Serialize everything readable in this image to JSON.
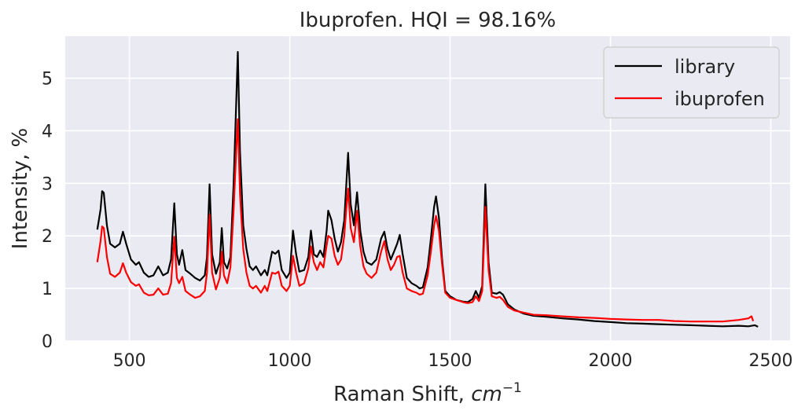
{
  "chart_data": {
    "type": "line",
    "title": "Ibuprofen. HQI = 98.16%",
    "xlabel": "Raman Shift,",
    "xlabel_math": "cm",
    "xlabel_sup": "−1",
    "ylabel": "Intensity, %",
    "xlim": [
      300,
      2560
    ],
    "ylim": [
      0,
      5.8
    ],
    "xticks": [
      500,
      1000,
      1500,
      2000,
      2500
    ],
    "yticks": [
      0,
      1,
      2,
      3,
      4,
      5
    ],
    "grid": true,
    "legend": "top-right",
    "series": [
      {
        "name": "library",
        "color": "#000000",
        "points": [
          [
            400,
            2.12
          ],
          [
            410,
            2.5
          ],
          [
            415,
            2.85
          ],
          [
            420,
            2.82
          ],
          [
            430,
            2.2
          ],
          [
            440,
            1.85
          ],
          [
            455,
            1.78
          ],
          [
            470,
            1.85
          ],
          [
            480,
            2.08
          ],
          [
            490,
            1.85
          ],
          [
            505,
            1.55
          ],
          [
            520,
            1.45
          ],
          [
            530,
            1.5
          ],
          [
            545,
            1.3
          ],
          [
            560,
            1.22
          ],
          [
            575,
            1.25
          ],
          [
            590,
            1.42
          ],
          [
            605,
            1.25
          ],
          [
            620,
            1.3
          ],
          [
            630,
            1.55
          ],
          [
            640,
            2.62
          ],
          [
            648,
            1.65
          ],
          [
            655,
            1.45
          ],
          [
            665,
            1.73
          ],
          [
            675,
            1.35
          ],
          [
            690,
            1.28
          ],
          [
            705,
            1.2
          ],
          [
            720,
            1.15
          ],
          [
            735,
            1.25
          ],
          [
            742,
            1.6
          ],
          [
            750,
            2.98
          ],
          [
            758,
            1.65
          ],
          [
            770,
            1.28
          ],
          [
            782,
            1.5
          ],
          [
            788,
            2.15
          ],
          [
            795,
            1.5
          ],
          [
            805,
            1.38
          ],
          [
            815,
            1.6
          ],
          [
            825,
            3.0
          ],
          [
            833,
            4.5
          ],
          [
            838,
            5.5
          ],
          [
            845,
            3.6
          ],
          [
            855,
            2.2
          ],
          [
            865,
            1.75
          ],
          [
            875,
            1.42
          ],
          [
            885,
            1.35
          ],
          [
            895,
            1.42
          ],
          [
            910,
            1.25
          ],
          [
            922,
            1.35
          ],
          [
            930,
            1.25
          ],
          [
            945,
            1.7
          ],
          [
            955,
            1.66
          ],
          [
            965,
            1.72
          ],
          [
            975,
            1.35
          ],
          [
            990,
            1.2
          ],
          [
            1000,
            1.3
          ],
          [
            1010,
            2.1
          ],
          [
            1020,
            1.65
          ],
          [
            1030,
            1.32
          ],
          [
            1045,
            1.35
          ],
          [
            1058,
            1.6
          ],
          [
            1066,
            2.1
          ],
          [
            1075,
            1.65
          ],
          [
            1085,
            1.6
          ],
          [
            1095,
            1.72
          ],
          [
            1105,
            1.6
          ],
          [
            1115,
            2.1
          ],
          [
            1120,
            2.48
          ],
          [
            1130,
            2.3
          ],
          [
            1140,
            1.95
          ],
          [
            1150,
            1.7
          ],
          [
            1160,
            1.88
          ],
          [
            1170,
            2.3
          ],
          [
            1176,
            2.95
          ],
          [
            1182,
            3.58
          ],
          [
            1190,
            2.6
          ],
          [
            1200,
            2.2
          ],
          [
            1210,
            2.83
          ],
          [
            1220,
            2.1
          ],
          [
            1230,
            1.7
          ],
          [
            1240,
            1.5
          ],
          [
            1255,
            1.45
          ],
          [
            1270,
            1.55
          ],
          [
            1285,
            1.95
          ],
          [
            1295,
            2.08
          ],
          [
            1305,
            1.75
          ],
          [
            1315,
            1.55
          ],
          [
            1325,
            1.7
          ],
          [
            1335,
            1.85
          ],
          [
            1343,
            2.02
          ],
          [
            1352,
            1.65
          ],
          [
            1365,
            1.2
          ],
          [
            1380,
            1.1
          ],
          [
            1395,
            1.05
          ],
          [
            1405,
            1.0
          ],
          [
            1415,
            1.02
          ],
          [
            1430,
            1.4
          ],
          [
            1440,
            1.95
          ],
          [
            1450,
            2.55
          ],
          [
            1456,
            2.75
          ],
          [
            1465,
            2.35
          ],
          [
            1475,
            1.55
          ],
          [
            1485,
            0.95
          ],
          [
            1500,
            0.85
          ],
          [
            1520,
            0.78
          ],
          [
            1540,
            0.75
          ],
          [
            1555,
            0.74
          ],
          [
            1570,
            0.8
          ],
          [
            1580,
            0.95
          ],
          [
            1590,
            0.82
          ],
          [
            1600,
            1.05
          ],
          [
            1610,
            2.98
          ],
          [
            1620,
            1.5
          ],
          [
            1630,
            0.92
          ],
          [
            1645,
            0.9
          ],
          [
            1655,
            0.93
          ],
          [
            1665,
            0.88
          ],
          [
            1680,
            0.7
          ],
          [
            1700,
            0.6
          ],
          [
            1730,
            0.52
          ],
          [
            1760,
            0.48
          ],
          [
            1800,
            0.46
          ],
          [
            1850,
            0.43
          ],
          [
            1900,
            0.41
          ],
          [
            1950,
            0.38
          ],
          [
            2000,
            0.36
          ],
          [
            2050,
            0.34
          ],
          [
            2100,
            0.33
          ],
          [
            2150,
            0.32
          ],
          [
            2200,
            0.31
          ],
          [
            2250,
            0.3
          ],
          [
            2300,
            0.29
          ],
          [
            2350,
            0.28
          ],
          [
            2400,
            0.29
          ],
          [
            2430,
            0.28
          ],
          [
            2450,
            0.3
          ],
          [
            2460,
            0.27
          ]
        ]
      },
      {
        "name": "ibuprofen",
        "color": "#ff0000",
        "points": [
          [
            400,
            1.5
          ],
          [
            410,
            1.9
          ],
          [
            415,
            2.18
          ],
          [
            420,
            2.15
          ],
          [
            430,
            1.6
          ],
          [
            440,
            1.28
          ],
          [
            455,
            1.22
          ],
          [
            470,
            1.3
          ],
          [
            480,
            1.48
          ],
          [
            490,
            1.3
          ],
          [
            505,
            1.12
          ],
          [
            520,
            1.05
          ],
          [
            530,
            1.08
          ],
          [
            545,
            0.92
          ],
          [
            560,
            0.87
          ],
          [
            575,
            0.88
          ],
          [
            590,
            1.0
          ],
          [
            605,
            0.88
          ],
          [
            620,
            0.9
          ],
          [
            630,
            1.1
          ],
          [
            640,
            1.98
          ],
          [
            648,
            1.2
          ],
          [
            655,
            1.1
          ],
          [
            665,
            1.22
          ],
          [
            675,
            0.95
          ],
          [
            690,
            0.88
          ],
          [
            705,
            0.82
          ],
          [
            720,
            0.85
          ],
          [
            735,
            0.95
          ],
          [
            742,
            1.3
          ],
          [
            750,
            2.4
          ],
          [
            758,
            1.3
          ],
          [
            770,
            0.98
          ],
          [
            782,
            1.2
          ],
          [
            788,
            1.7
          ],
          [
            795,
            1.25
          ],
          [
            805,
            1.1
          ],
          [
            815,
            1.4
          ],
          [
            825,
            2.5
          ],
          [
            833,
            3.6
          ],
          [
            838,
            4.22
          ],
          [
            845,
            2.8
          ],
          [
            855,
            1.75
          ],
          [
            865,
            1.3
          ],
          [
            875,
            1.05
          ],
          [
            885,
            1.0
          ],
          [
            895,
            1.05
          ],
          [
            910,
            0.92
          ],
          [
            922,
            1.05
          ],
          [
            930,
            0.95
          ],
          [
            945,
            1.3
          ],
          [
            955,
            1.28
          ],
          [
            965,
            1.32
          ],
          [
            975,
            1.05
          ],
          [
            990,
            0.95
          ],
          [
            1000,
            1.05
          ],
          [
            1010,
            1.62
          ],
          [
            1020,
            1.3
          ],
          [
            1030,
            1.05
          ],
          [
            1045,
            1.1
          ],
          [
            1058,
            1.38
          ],
          [
            1066,
            1.8
          ],
          [
            1075,
            1.5
          ],
          [
            1085,
            1.35
          ],
          [
            1095,
            1.5
          ],
          [
            1105,
            1.4
          ],
          [
            1115,
            1.82
          ],
          [
            1120,
            2.0
          ],
          [
            1130,
            1.95
          ],
          [
            1140,
            1.62
          ],
          [
            1150,
            1.45
          ],
          [
            1160,
            1.55
          ],
          [
            1170,
            2.0
          ],
          [
            1176,
            2.5
          ],
          [
            1182,
            2.9
          ],
          [
            1190,
            2.15
          ],
          [
            1200,
            1.88
          ],
          [
            1210,
            2.48
          ],
          [
            1220,
            1.8
          ],
          [
            1230,
            1.42
          ],
          [
            1240,
            1.28
          ],
          [
            1255,
            1.2
          ],
          [
            1270,
            1.3
          ],
          [
            1285,
            1.7
          ],
          [
            1295,
            1.9
          ],
          [
            1305,
            1.55
          ],
          [
            1315,
            1.35
          ],
          [
            1325,
            1.45
          ],
          [
            1335,
            1.6
          ],
          [
            1343,
            1.62
          ],
          [
            1352,
            1.3
          ],
          [
            1365,
            1.0
          ],
          [
            1380,
            0.95
          ],
          [
            1395,
            0.92
          ],
          [
            1405,
            0.88
          ],
          [
            1415,
            0.9
          ],
          [
            1430,
            1.25
          ],
          [
            1440,
            1.7
          ],
          [
            1450,
            2.2
          ],
          [
            1456,
            2.38
          ],
          [
            1465,
            2.1
          ],
          [
            1475,
            1.45
          ],
          [
            1485,
            0.92
          ],
          [
            1500,
            0.82
          ],
          [
            1520,
            0.78
          ],
          [
            1540,
            0.74
          ],
          [
            1555,
            0.72
          ],
          [
            1570,
            0.74
          ],
          [
            1580,
            0.85
          ],
          [
            1590,
            0.76
          ],
          [
            1600,
            0.95
          ],
          [
            1610,
            2.55
          ],
          [
            1620,
            1.35
          ],
          [
            1630,
            0.85
          ],
          [
            1645,
            0.82
          ],
          [
            1655,
            0.84
          ],
          [
            1665,
            0.78
          ],
          [
            1680,
            0.65
          ],
          [
            1700,
            0.58
          ],
          [
            1730,
            0.54
          ],
          [
            1760,
            0.5
          ],
          [
            1800,
            0.49
          ],
          [
            1850,
            0.47
          ],
          [
            1900,
            0.45
          ],
          [
            1950,
            0.44
          ],
          [
            2000,
            0.42
          ],
          [
            2050,
            0.41
          ],
          [
            2100,
            0.4
          ],
          [
            2150,
            0.4
          ],
          [
            2200,
            0.38
          ],
          [
            2250,
            0.37
          ],
          [
            2300,
            0.37
          ],
          [
            2350,
            0.37
          ],
          [
            2400,
            0.4
          ],
          [
            2430,
            0.43
          ],
          [
            2440,
            0.47
          ],
          [
            2445,
            0.38
          ]
        ]
      }
    ]
  }
}
